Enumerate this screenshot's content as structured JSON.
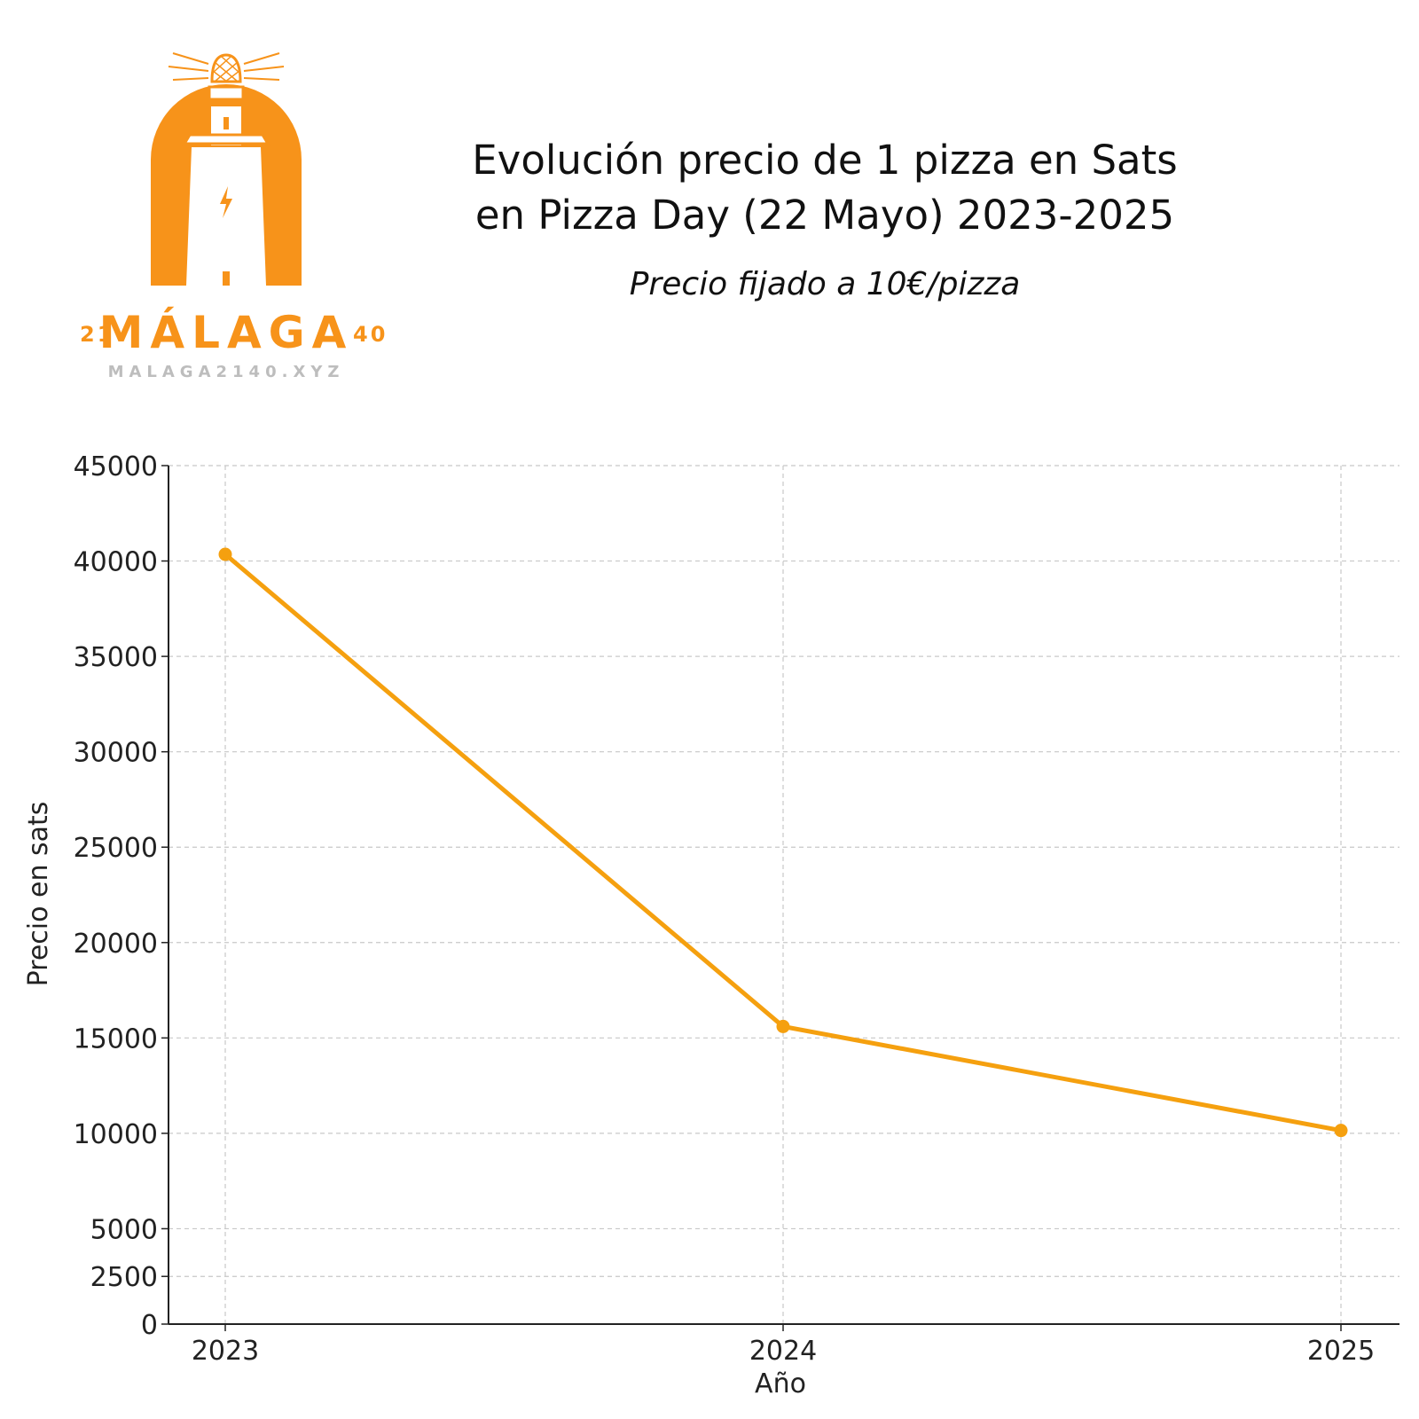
{
  "header": {
    "title_line1": "Evolución precio de 1 pizza en Sats",
    "title_line2": "en Pizza Day (22 Mayo) 2023-2025",
    "subtitle": "Precio fijado a 10€/pizza"
  },
  "logo": {
    "left_number": "21",
    "name": "MÁLAGA",
    "right_number": "40",
    "url": "MALAGA2140.XYZ",
    "color": "#F7931A",
    "url_color": "#BDBDBD"
  },
  "chart_data": {
    "type": "line",
    "x": [
      "2023",
      "2024",
      "2025"
    ],
    "series": [
      {
        "values": [
          40350,
          15600,
          10150
        ],
        "color": "#F5A00F"
      }
    ],
    "xlabel": "Año",
    "ylabel": "Precio en sats",
    "ylim": [
      0,
      45000
    ],
    "yticks": [
      0,
      2500,
      5000,
      10000,
      15000,
      20000,
      25000,
      30000,
      35000,
      40000,
      45000
    ],
    "grid": true,
    "legend": "none"
  }
}
